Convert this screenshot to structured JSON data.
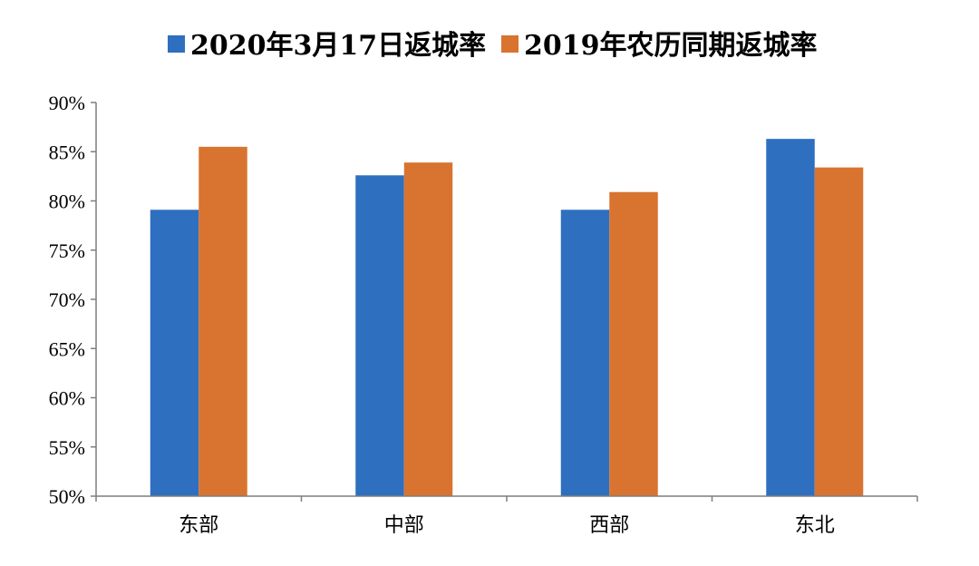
{
  "chart_data": {
    "type": "bar",
    "categories": [
      "东部",
      "中部",
      "西部",
      "东北"
    ],
    "series": [
      {
        "name": "2020年3月17日返城率",
        "color": "#2E6FBF",
        "values": [
          79.1,
          82.6,
          79.1,
          86.3
        ]
      },
      {
        "name": "2019年农历同期返城率",
        "color": "#D97330",
        "values": [
          85.5,
          83.9,
          80.9,
          83.4
        ]
      }
    ],
    "ylim": [
      50,
      90
    ],
    "yticks": [
      50,
      55,
      60,
      65,
      70,
      75,
      80,
      85,
      90
    ],
    "ytick_labels": [
      "50%",
      "55%",
      "60%",
      "65%",
      "70%",
      "75%",
      "80%",
      "85%",
      "90%"
    ],
    "title": "",
    "xlabel": "",
    "ylabel": "",
    "grid": false,
    "legend": "top-center"
  }
}
